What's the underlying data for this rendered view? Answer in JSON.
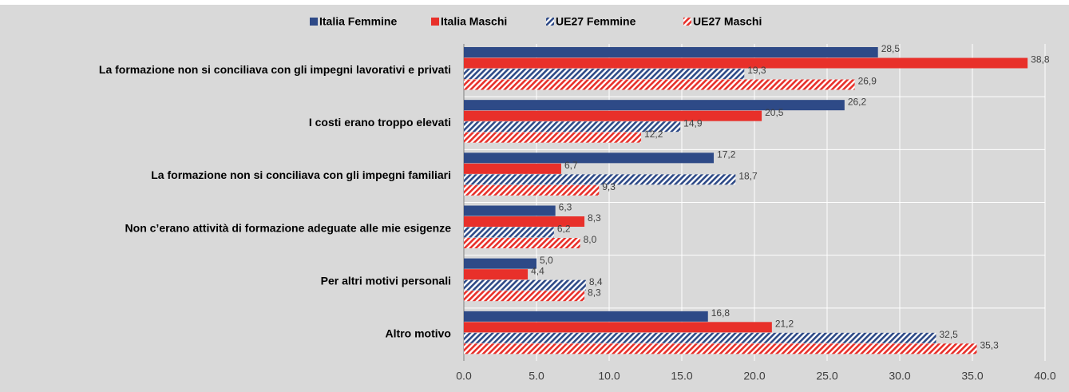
{
  "chart_data": {
    "type": "barh",
    "categories": [
      "La formazione non si conciliava con gli impegni lavorativi e privati",
      "I costi erano troppo elevati",
      "La formazione non si conciliava con gli impegni familiari",
      "Non c’erano attività di formazione adeguate alle mie esigenze",
      "Per altri motivi personali",
      "Altro motivo"
    ],
    "series": [
      {
        "name": "Italia Femmine",
        "color": "#2e4a87",
        "pattern": "solid",
        "values": [
          28.5,
          26.2,
          17.2,
          6.3,
          5.0,
          16.8
        ],
        "value_labels": [
          "28,5",
          "26,2",
          "17,2",
          "6,3",
          "5,0",
          "16,8"
        ]
      },
      {
        "name": "Italia Maschi",
        "color": "#e8302a",
        "pattern": "solid",
        "values": [
          38.8,
          20.5,
          6.7,
          8.3,
          4.4,
          21.2
        ],
        "value_labels": [
          "38,8",
          "20,5",
          "6,7",
          "8,3",
          "4,4",
          "21,2"
        ]
      },
      {
        "name": "UE27 Femmine",
        "color": "#2e4a87",
        "pattern": "hatch",
        "values": [
          19.3,
          14.9,
          18.7,
          6.2,
          8.4,
          32.5
        ],
        "value_labels": [
          "19,3",
          "14,9",
          "18,7",
          "6,2",
          "8,4",
          "32,5"
        ]
      },
      {
        "name": "UE27 Maschi",
        "color": "#e8302a",
        "pattern": "hatch",
        "values": [
          26.9,
          12.2,
          9.3,
          8.0,
          8.3,
          35.3
        ],
        "value_labels": [
          "26,9",
          "12,2",
          "9,3",
          "8,0",
          "8,3",
          "35,3"
        ]
      }
    ],
    "xlim": [
      0,
      40
    ],
    "xticks": [
      {
        "value": 0,
        "label": "0.0"
      },
      {
        "value": 5,
        "label": "5.0"
      },
      {
        "value": 10,
        "label": "10.0"
      },
      {
        "value": 15,
        "label": "15.0"
      },
      {
        "value": 20,
        "label": "20.0"
      },
      {
        "value": 25,
        "label": "25.0"
      },
      {
        "value": 30,
        "label": "30.0"
      },
      {
        "value": 35,
        "label": "35.0"
      },
      {
        "value": 40,
        "label": "40.0"
      }
    ],
    "grid": true,
    "legend": "top"
  }
}
